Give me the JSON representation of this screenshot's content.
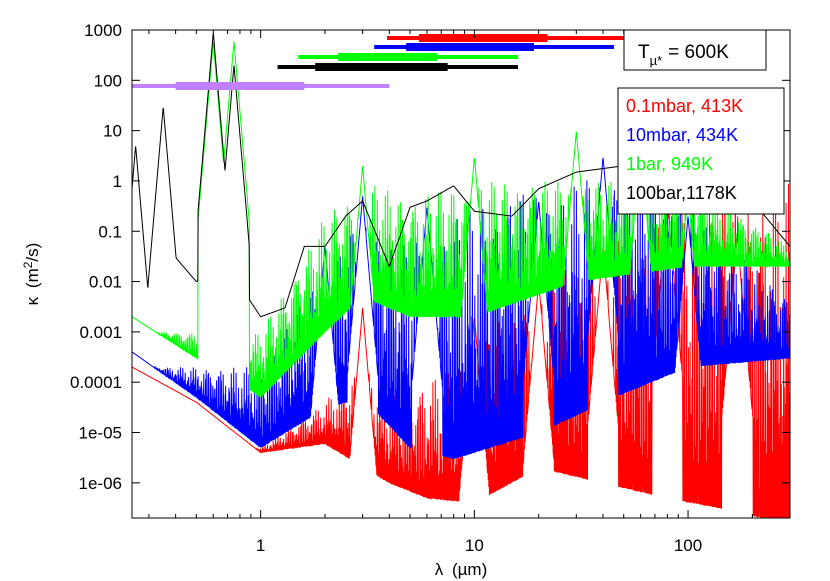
{
  "chart_data": {
    "type": "line",
    "xscale": "log",
    "yscale": "log",
    "xlim": [
      0.25,
      300
    ],
    "ylim": [
      2e-07,
      1000
    ],
    "xlabel_symbol": "λ",
    "xlabel_unit": "(µm)",
    "ylabel_symbol": "κ",
    "ylabel_unit_prefix": "(m",
    "ylabel_unit_sup": "2",
    "ylabel_unit_suffix": "/s)",
    "xticks": [
      {
        "value": 1,
        "label": "1"
      },
      {
        "value": 10,
        "label": "10"
      },
      {
        "value": 100,
        "label": "100"
      }
    ],
    "yticks": [
      {
        "value": 1000,
        "label": "1000"
      },
      {
        "value": 100,
        "label": "100"
      },
      {
        "value": 10,
        "label": "10"
      },
      {
        "value": 1,
        "label": "1"
      },
      {
        "value": 0.1,
        "label": "0.1"
      },
      {
        "value": 0.01,
        "label": "0.01"
      },
      {
        "value": 0.001,
        "label": "0.001"
      },
      {
        "value": 0.0001,
        "label": "0.0001"
      },
      {
        "value": 1e-05,
        "label": "1e-05"
      },
      {
        "value": 1e-06,
        "label": "1e-06"
      }
    ],
    "temperature_label": {
      "T": "T",
      "sub": "µ*",
      "value": "=  600K"
    },
    "legend_position": "right",
    "series": [
      {
        "name": "0.1mbar, 413K",
        "color": "#ff0000",
        "baseline": [
          [
            0.25,
            0.0002
          ],
          [
            0.5,
            4e-05
          ],
          [
            1,
            4e-06
          ],
          [
            2,
            6e-06
          ],
          [
            4,
            1e-06
          ],
          [
            6,
            5e-07
          ],
          [
            10,
            4e-07
          ],
          [
            20,
            2e-06
          ],
          [
            40,
            1e-06
          ],
          [
            80,
            5e-07
          ],
          [
            150,
            3e-07
          ],
          [
            300,
            1.5e-07
          ]
        ],
        "spike_peaks": [
          [
            3,
            0.003
          ],
          [
            10,
            0.002
          ],
          [
            20,
            0.01
          ],
          [
            40,
            0.05
          ],
          [
            80,
            0.4
          ],
          [
            170,
            0.08
          ]
        ],
        "band_top": [
          [
            1,
            5e-06
          ],
          [
            2,
            4e-05
          ],
          [
            3,
            0.0003
          ],
          [
            4,
            5e-05
          ],
          [
            8,
            0.0002
          ],
          [
            20,
            0.01
          ],
          [
            40,
            0.05
          ],
          [
            80,
            0.3
          ],
          [
            150,
            0.8
          ],
          [
            300,
            1
          ]
        ],
        "band_center": 5.0,
        "band_thick": [
          5.5,
          22
        ],
        "band_thin": [
          3.9,
          60
        ]
      },
      {
        "name": "10mbar, 434K",
        "color": "#0000ff",
        "baseline": [
          [
            0.25,
            0.0004
          ],
          [
            0.5,
            5e-05
          ],
          [
            1,
            5e-06
          ],
          [
            2,
            3e-05
          ],
          [
            3,
            5e-05
          ],
          [
            5,
            5e-06
          ],
          [
            8,
            3e-06
          ],
          [
            20,
            1e-05
          ],
          [
            50,
            6e-05
          ],
          [
            100,
            0.0002
          ],
          [
            300,
            0.0003
          ]
        ],
        "spike_peaks": [
          [
            2,
            0.05
          ],
          [
            3,
            0.5
          ],
          [
            6,
            0.3
          ],
          [
            20,
            0.4
          ],
          [
            40,
            3
          ],
          [
            100,
            0.2
          ]
        ],
        "band_top": [
          [
            1,
            0.0002
          ],
          [
            2,
            0.02
          ],
          [
            3,
            0.2
          ],
          [
            5,
            0.05
          ],
          [
            10,
            0.4
          ],
          [
            30,
            1
          ],
          [
            60,
            3
          ],
          [
            100,
            0.3
          ],
          [
            300,
            0.005
          ]
        ],
        "band_center": 5.0,
        "band_thick": [
          4.8,
          19
        ],
        "band_thin": [
          3.4,
          45
        ]
      },
      {
        "name": "1bar, 949K",
        "color": "#00ff00",
        "baseline": [
          [
            0.25,
            0.002
          ],
          [
            0.5,
            0.0003
          ],
          [
            0.8,
            0.0001
          ],
          [
            1,
            5e-05
          ],
          [
            2,
            0.001
          ],
          [
            3,
            0.005
          ],
          [
            5,
            0.002
          ],
          [
            10,
            0.002
          ],
          [
            30,
            0.01
          ],
          [
            100,
            0.02
          ],
          [
            300,
            0.02
          ]
        ],
        "spike_peaks": [
          [
            0.6,
            600
          ],
          [
            0.75,
            600
          ],
          [
            3,
            2
          ],
          [
            10,
            3
          ],
          [
            30,
            10
          ],
          [
            60,
            5
          ],
          [
            100,
            0.6
          ]
        ],
        "band_top": [
          [
            1,
            0.001
          ],
          [
            2,
            0.2
          ],
          [
            3,
            1
          ],
          [
            5,
            0.5
          ],
          [
            10,
            1
          ],
          [
            30,
            1
          ],
          [
            100,
            1
          ],
          [
            300,
            0.05
          ]
        ],
        "band_center": 3.0,
        "band_thick": [
          2.3,
          6.7
        ],
        "band_thin": [
          1.5,
          16
        ]
      },
      {
        "name": "100bar,1178K",
        "color": "#000000",
        "baseline": [
          [
            0.25,
            0.3
          ],
          [
            0.3,
            0.005
          ],
          [
            0.4,
            0.03
          ],
          [
            0.5,
            0.01
          ],
          [
            0.7,
            0.02
          ],
          [
            1,
            0.002
          ],
          [
            1.3,
            0.003
          ],
          [
            1.6,
            0.05
          ],
          [
            2,
            0.05
          ],
          [
            2.5,
            0.2
          ],
          [
            3,
            0.4
          ],
          [
            4,
            0.02
          ],
          [
            5,
            0.3
          ],
          [
            6,
            0.4
          ],
          [
            8,
            0.8
          ],
          [
            10,
            0.25
          ],
          [
            15,
            0.2
          ],
          [
            20,
            0.7
          ],
          [
            30,
            1.5
          ],
          [
            50,
            2
          ],
          [
            80,
            3
          ],
          [
            100,
            2
          ],
          [
            150,
            1
          ],
          [
            200,
            0.4
          ],
          [
            300,
            0.05
          ]
        ],
        "spike_peaks": [
          [
            0.26,
            5
          ],
          [
            0.35,
            30
          ],
          [
            0.6,
            900
          ],
          [
            0.75,
            200
          ]
        ],
        "band_top": [],
        "band_center": 1.8,
        "band_thick": [
          1.8,
          7.5
        ],
        "band_thin": [
          1.2,
          16
        ]
      }
    ],
    "purple_band": {
      "color": "#c080ff",
      "thick": [
        0.4,
        1.6
      ],
      "thin": [
        0.25,
        4
      ]
    }
  }
}
